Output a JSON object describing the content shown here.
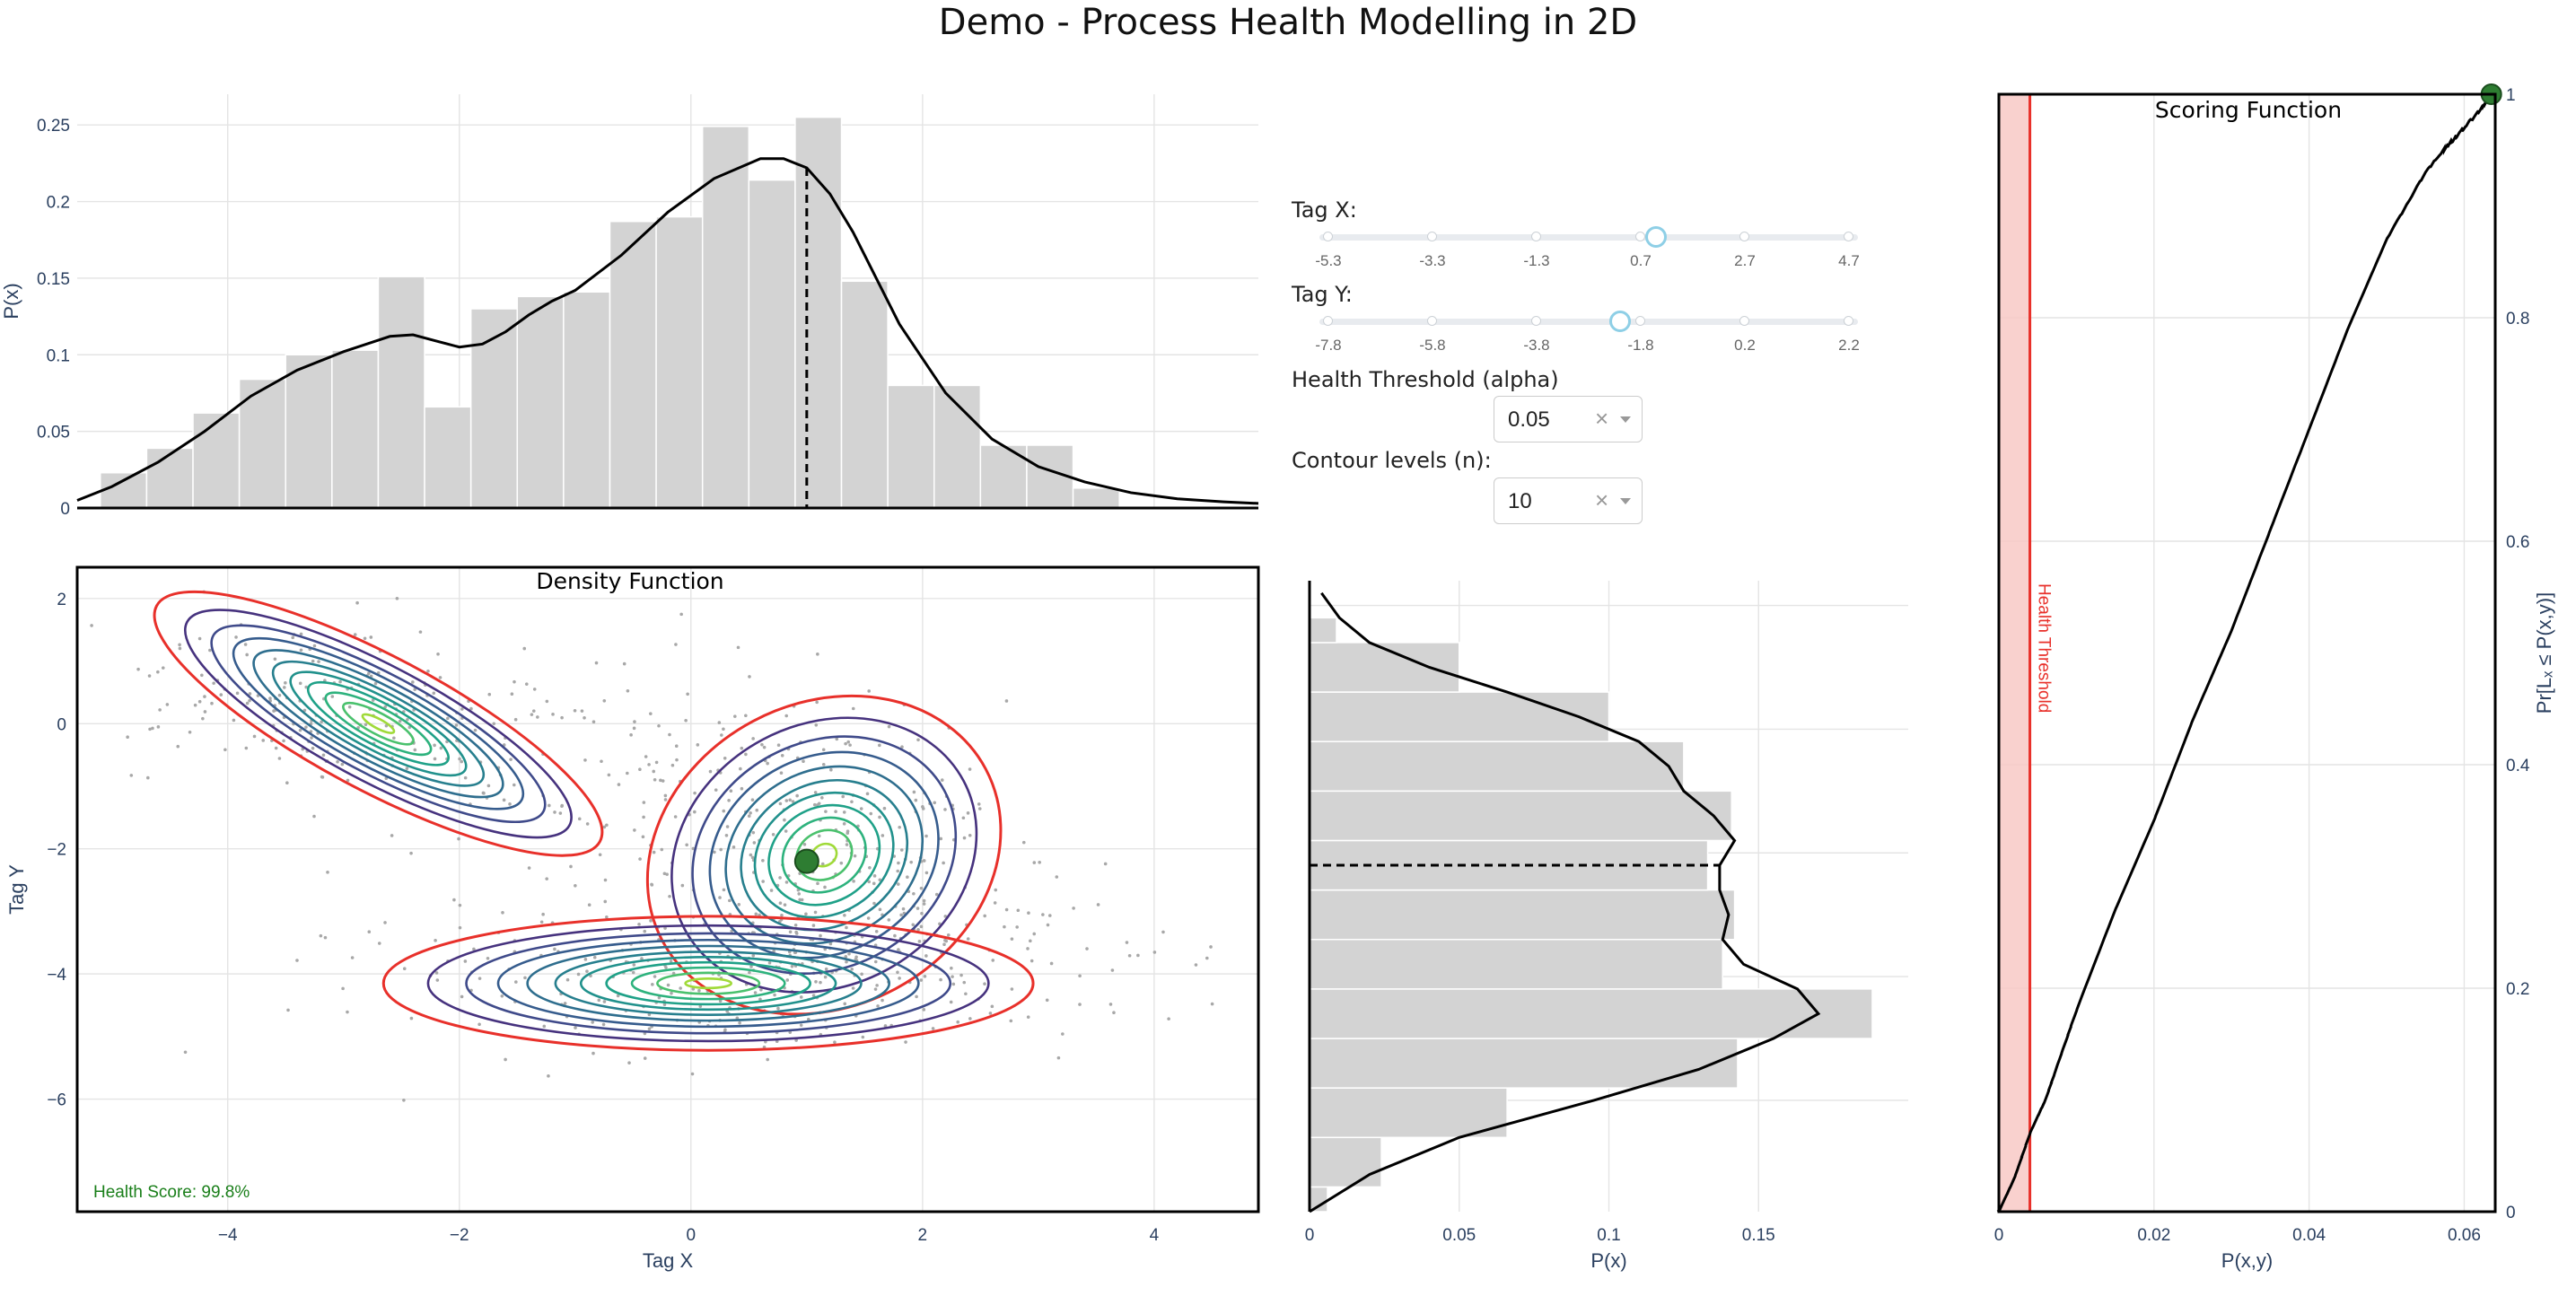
{
  "page": {
    "title": "Demo - Process Health Modelling in 2D"
  },
  "controls": {
    "tag_x": {
      "label": "Tag X:",
      "ticks": [
        "-5.3",
        "-3.3",
        "-1.3",
        "0.7",
        "2.7",
        "4.7"
      ],
      "value": 1.0
    },
    "tag_y": {
      "label": "Tag Y:",
      "ticks": [
        "-7.8",
        "-5.8",
        "-3.8",
        "-1.8",
        "0.2",
        "2.2"
      ],
      "value": -2.2
    },
    "alpha": {
      "label": "Health Threshold (alpha)",
      "value": "0.05",
      "clear": "×"
    },
    "levels": {
      "label": "Contour levels (n):",
      "value": "10",
      "clear": "×"
    }
  },
  "colors": {
    "hist": "#d3d3d3",
    "threshold": "#e8302a",
    "point": "#2e7d32",
    "health_text": "#1a7f1a"
  },
  "chart_data": [
    {
      "id": "marginal_x",
      "type": "bar",
      "ylabel": "P(x)",
      "xlim": [
        -5.3,
        4.9
      ],
      "ylim": [
        0,
        0.27
      ],
      "yticks": [
        "0",
        "0.05",
        "0.1",
        "0.15",
        "0.2",
        "0.25"
      ],
      "bin_edges": [
        -5.1,
        -4.7,
        -4.3,
        -3.9,
        -3.5,
        -3.1,
        -2.7,
        -2.3,
        -1.9,
        -1.5,
        -1.1,
        -0.7,
        -0.3,
        0.1,
        0.5,
        0.9,
        1.3,
        1.7,
        2.1,
        2.5,
        2.9,
        3.3,
        3.7
      ],
      "values": [
        0.023,
        0.039,
        0.062,
        0.084,
        0.1,
        0.103,
        0.151,
        0.066,
        0.13,
        0.138,
        0.141,
        0.187,
        0.19,
        0.249,
        0.214,
        0.255,
        0.148,
        0.08,
        0.08,
        0.041,
        0.041,
        0.013,
        0.01
      ],
      "kde_x": [
        -5.3,
        -5.0,
        -4.6,
        -4.2,
        -3.8,
        -3.4,
        -3.0,
        -2.6,
        -2.4,
        -2.2,
        -2.0,
        -1.8,
        -1.6,
        -1.4,
        -1.2,
        -1.0,
        -0.6,
        -0.2,
        0.2,
        0.6,
        0.8,
        1.0,
        1.2,
        1.4,
        1.6,
        1.8,
        2.2,
        2.6,
        3.0,
        3.4,
        3.8,
        4.2,
        4.6,
        4.9
      ],
      "kde_y": [
        0.005,
        0.014,
        0.03,
        0.05,
        0.073,
        0.09,
        0.102,
        0.112,
        0.113,
        0.109,
        0.105,
        0.107,
        0.115,
        0.126,
        0.135,
        0.142,
        0.165,
        0.193,
        0.215,
        0.228,
        0.228,
        0.222,
        0.205,
        0.18,
        0.15,
        0.12,
        0.075,
        0.045,
        0.027,
        0.017,
        0.01,
        0.006,
        0.004,
        0.003
      ],
      "marker_x": 1.0,
      "marker_y": 0.222
    },
    {
      "id": "density",
      "type": "contour",
      "title": "Density Function",
      "xlabel": "Tag X",
      "ylabel": "Tag Y",
      "xlim": [
        -5.3,
        4.9
      ],
      "ylim": [
        -7.8,
        2.5
      ],
      "xticks": [
        "−4",
        "−2",
        "0",
        "2",
        "4"
      ],
      "xtick_values": [
        -4,
        -2,
        0,
        2,
        4
      ],
      "yticks": [
        "2",
        "0",
        "−2",
        "−4",
        "−6"
      ],
      "ytick_values": [
        2,
        0,
        -2,
        -4,
        -6
      ],
      "current_point": {
        "x": 1.0,
        "y": -2.2
      },
      "health_score": "Health Score: 99.8%",
      "modes": [
        {
          "cx": -2.7,
          "cy": 0.0,
          "sx": 0.85,
          "sy": 0.42,
          "rot": -28
        },
        {
          "cx": 1.15,
          "cy": -2.1,
          "sx": 0.62,
          "sy": 0.95,
          "rot": 28
        },
        {
          "cx": 0.15,
          "cy": -4.15,
          "sx": 1.1,
          "sy": 0.42,
          "rot": 0
        }
      ],
      "contour_colors": [
        "#e8302a",
        "#46327e",
        "#3f4a8a",
        "#365c8d",
        "#2e6e8e",
        "#277f8e",
        "#21918c",
        "#1fa188",
        "#2db27d",
        "#4ac16d",
        "#a0da39"
      ]
    },
    {
      "id": "marginal_y",
      "type": "bar",
      "xlabel": "P(x)",
      "xlim": [
        0,
        0.2
      ],
      "ylim": [
        -7.8,
        2.4
      ],
      "xticks": [
        "0",
        "0.05",
        "0.1",
        "0.15"
      ],
      "xtick_values": [
        0,
        0.05,
        0.1,
        0.15
      ],
      "bin_edges": [
        -7.8,
        -7.4,
        -6.6,
        -5.8,
        -5.0,
        -4.2,
        -3.4,
        -2.6,
        -1.8,
        -1.0,
        -0.2,
        0.6,
        1.4,
        1.8
      ],
      "values": [
        0.006,
        0.024,
        0.066,
        0.143,
        0.188,
        0.138,
        0.142,
        0.133,
        0.141,
        0.125,
        0.1,
        0.05,
        0.009
      ],
      "kde_y": [
        -7.8,
        -7.2,
        -6.6,
        -6.0,
        -5.5,
        -5.0,
        -4.6,
        -4.2,
        -3.8,
        -3.4,
        -3.0,
        -2.6,
        -2.2,
        -1.8,
        -1.4,
        -1.0,
        -0.6,
        -0.2,
        0.2,
        0.6,
        1.0,
        1.4,
        1.8,
        2.2
      ],
      "kde_x": [
        0.0,
        0.02,
        0.05,
        0.095,
        0.13,
        0.155,
        0.17,
        0.163,
        0.145,
        0.138,
        0.14,
        0.137,
        0.137,
        0.142,
        0.135,
        0.125,
        0.12,
        0.11,
        0.09,
        0.066,
        0.04,
        0.02,
        0.01,
        0.004
      ],
      "marker_y": -2.2,
      "marker_x": 0.137
    },
    {
      "id": "scoring",
      "type": "line",
      "title": "Scoring Function",
      "xlabel": "P(x,y)",
      "ylabel": "Pr[Lₓ ≤ P(x,y)]",
      "xlim": [
        0,
        0.064
      ],
      "ylim": [
        0,
        1
      ],
      "xticks": [
        "0",
        "0.02",
        "0.04",
        "0.06"
      ],
      "xtick_values": [
        0,
        0.02,
        0.04,
        0.06
      ],
      "yticks": [
        "0",
        "0.2",
        "0.4",
        "0.6",
        "0.8",
        "1"
      ],
      "ytick_values": [
        0,
        0.2,
        0.4,
        0.6,
        0.8,
        1
      ],
      "threshold_x": 0.004,
      "threshold_label": "Health Threshold",
      "x": [
        0,
        0.002,
        0.004,
        0.006,
        0.008,
        0.01,
        0.015,
        0.02,
        0.025,
        0.03,
        0.035,
        0.04,
        0.045,
        0.05,
        0.055,
        0.058,
        0.06,
        0.062,
        0.0635
      ],
      "y": [
        0,
        0.03,
        0.07,
        0.1,
        0.14,
        0.18,
        0.27,
        0.35,
        0.44,
        0.52,
        0.61,
        0.7,
        0.79,
        0.87,
        0.93,
        0.955,
        0.97,
        0.985,
        1.0
      ],
      "current_point": {
        "x": 0.0635,
        "y": 1.0
      }
    }
  ]
}
